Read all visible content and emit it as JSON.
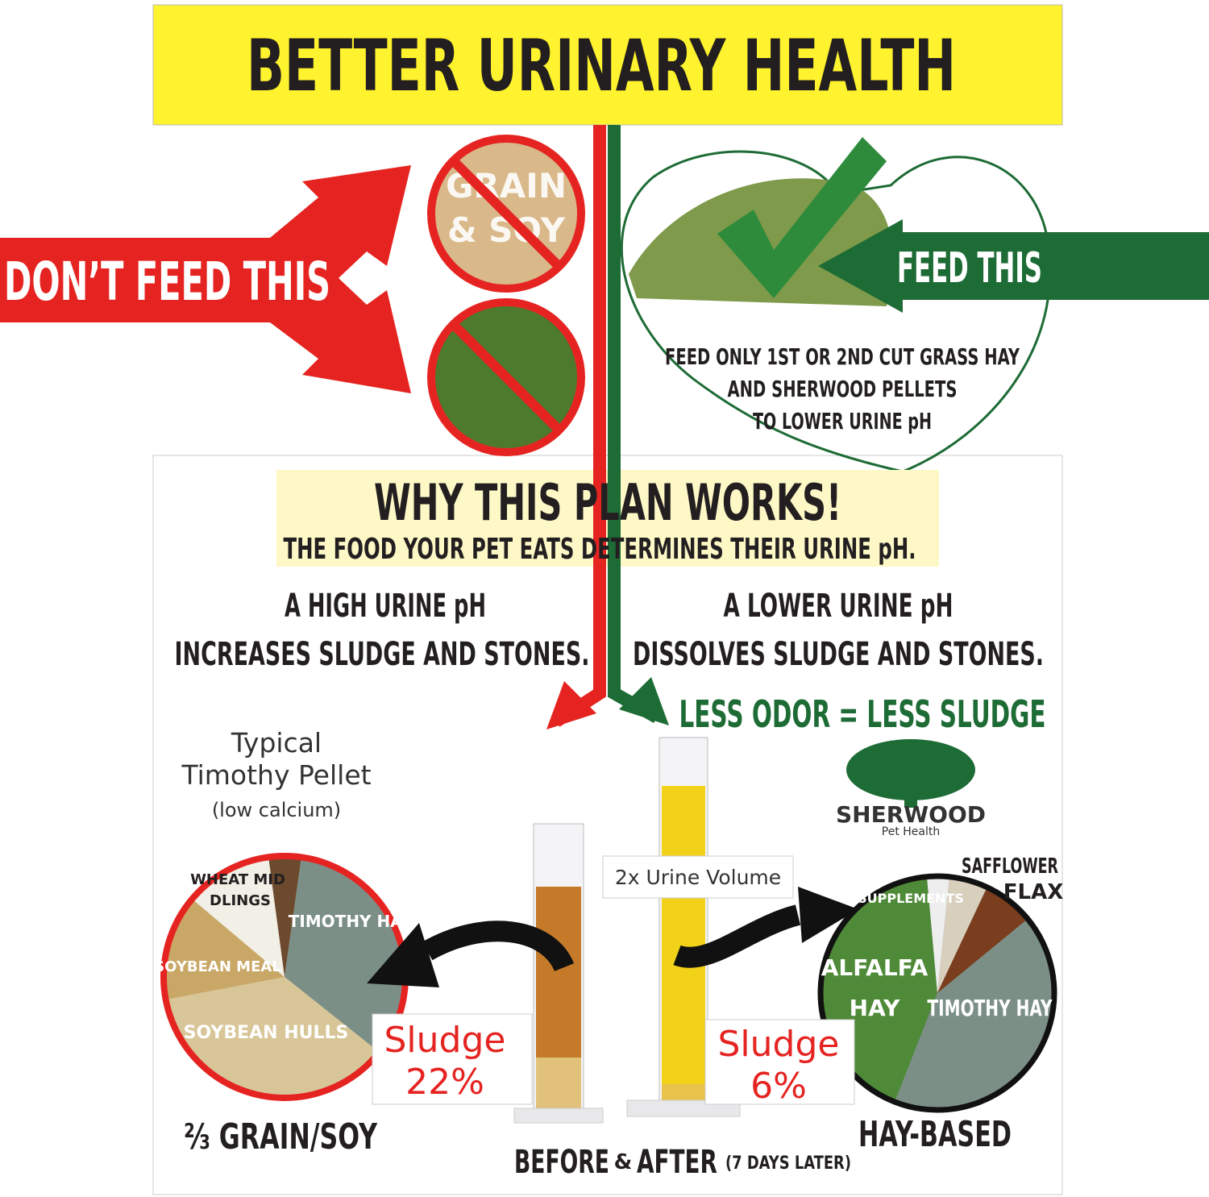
{
  "header": {
    "title": "BETTER  URINARY HEALTH"
  },
  "dont_feed": {
    "label": "DON’T FEED THIS",
    "circle_text": [
      "GRAIN",
      "& SOY"
    ]
  },
  "feed": {
    "label": "FEED THIS",
    "heart_lines": [
      "FEED ONLY 1ST OR 2ND CUT GRASS HAY",
      "AND SHERWOOD PELLETS",
      "TO LOWER URINE pH"
    ]
  },
  "plan": {
    "title": "WHY THIS PLAN WORKS!",
    "subtitle": "THE FOOD YOUR PET EATS DETERMINES THEIR URINE pH."
  },
  "high_ph": [
    "A HIGH URINE pH",
    "INCREASES SLUDGE AND STONES."
  ],
  "low_ph": [
    "A LOWER URINE pH",
    "DISSOLVES SLUDGE AND STONES."
  ],
  "odor": "LESS ODOR = LESS SLUDGE",
  "typical": [
    "Typical",
    "Timothy Pellet",
    "(low calcium)"
  ],
  "brand": {
    "name": "SHERWOOD",
    "tagline": "Pet Health"
  },
  "volume_note": "2x Urine Volume",
  "left_pie": {
    "labels": [
      "WHEAT MID",
      "DLINGS",
      "TIMOTHY HAY",
      "SOYBEAN MEAL",
      "SOYBEAN HULLS"
    ],
    "caption": "⅔ GRAIN/SOY"
  },
  "right_pie": {
    "labels": [
      "SUPPLEMENTS",
      "SAFFLOWER",
      "FLAX",
      "ALFALFA",
      "HAY",
      "TIMOTHY HAY"
    ],
    "caption": "HAY-BASED"
  },
  "before": {
    "label": "Sludge",
    "value": "22%"
  },
  "after": {
    "label": "Sludge",
    "value": "6%"
  },
  "footer": {
    "before": "BEFORE",
    "amp": "&",
    "after": "AFTER",
    "note": "(7 DAYS LATER)"
  }
}
